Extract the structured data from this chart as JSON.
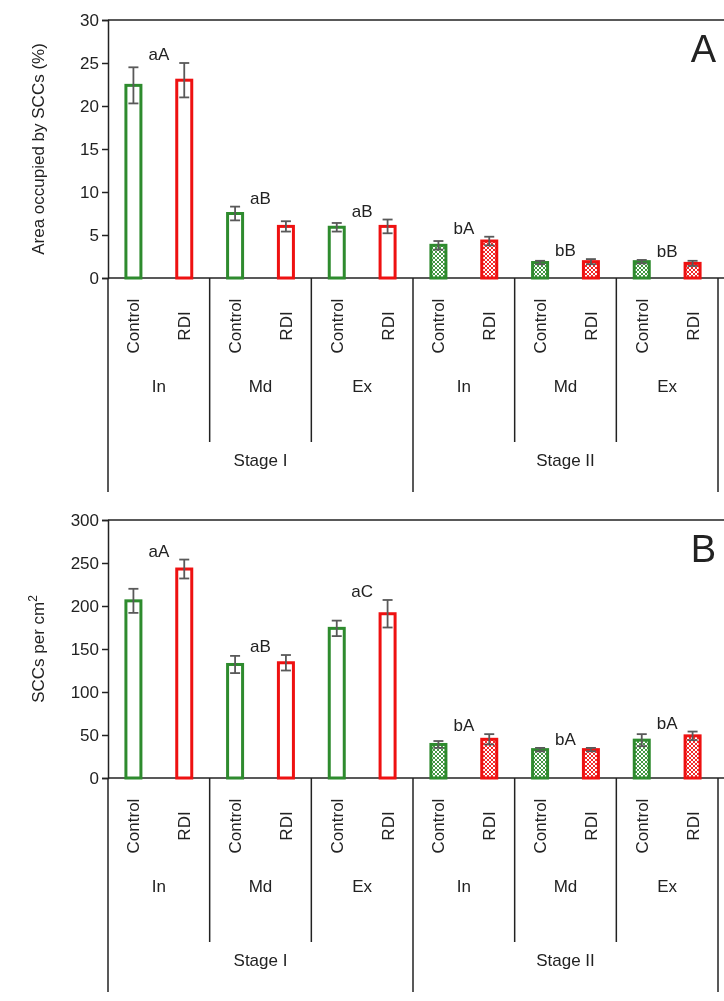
{
  "chart_data": [
    {
      "type": "bar",
      "ylabel": "Area occupied by SCCs (%)",
      "categories": [
        "Control",
        "RDI",
        "Control",
        "RDI",
        "Control",
        "RDI",
        "Control",
        "RDI",
        "Control",
        "RDI",
        "Control",
        "RDI"
      ],
      "values": [
        22.4,
        23.0,
        7.5,
        6.0,
        5.9,
        6.0,
        3.8,
        4.3,
        1.8,
        1.9,
        1.9,
        1.7
      ],
      "errors": [
        2.1,
        2.0,
        0.8,
        0.6,
        0.5,
        0.8,
        0.5,
        0.5,
        0.2,
        0.3,
        0.2,
        0.3
      ],
      "colors": [
        "#2e8b2e",
        "#ee1111",
        "#2e8b2e",
        "#ee1111",
        "#2e8b2e",
        "#ee1111",
        "#2e8b2e",
        "#ee1111",
        "#2e8b2e",
        "#ee1111",
        "#2e8b2e",
        "#ee1111"
      ],
      "ylim": [
        0,
        30
      ],
      "yticks": [
        0,
        5,
        10,
        15,
        20,
        25,
        30
      ],
      "annotations": [
        "aA",
        "aB",
        "aB",
        "bA",
        "bB",
        "bB",
        "In",
        "Md",
        "Ex",
        "In",
        "Md",
        "Ex",
        "Stage I",
        "Stage II",
        "A"
      ]
    },
    {
      "type": "bar",
      "ylabel": "SCCs per cm$^{2}$",
      "categories": [
        "Control",
        "RDI",
        "Control",
        "RDI",
        "Control",
        "RDI",
        "Control",
        "RDI",
        "Control",
        "RDI",
        "Control",
        "RDI"
      ],
      "values": [
        206,
        243,
        132,
        134,
        174,
        191,
        39,
        45,
        33,
        33,
        44,
        49
      ],
      "errors": [
        14,
        11,
        10,
        9,
        9,
        16,
        4,
        6,
        2,
        2,
        7,
        5
      ],
      "colors": [
        "#2e8b2e",
        "#ee1111",
        "#2e8b2e",
        "#ee1111",
        "#2e8b2e",
        "#ee1111",
        "#2e8b2e",
        "#ee1111",
        "#2e8b2e",
        "#ee1111",
        "#2e8b2e",
        "#ee1111"
      ],
      "ylim": [
        0,
        300
      ],
      "yticks": [
        0,
        50,
        100,
        150,
        200,
        250,
        300
      ],
      "annotations": [
        "aA",
        "aB",
        "aC",
        "bA",
        "bA",
        "bA",
        "In",
        "Md",
        "Ex",
        "In",
        "Md",
        "Ex",
        "Stage I",
        "Stage II",
        "B"
      ]
    }
  ]
}
